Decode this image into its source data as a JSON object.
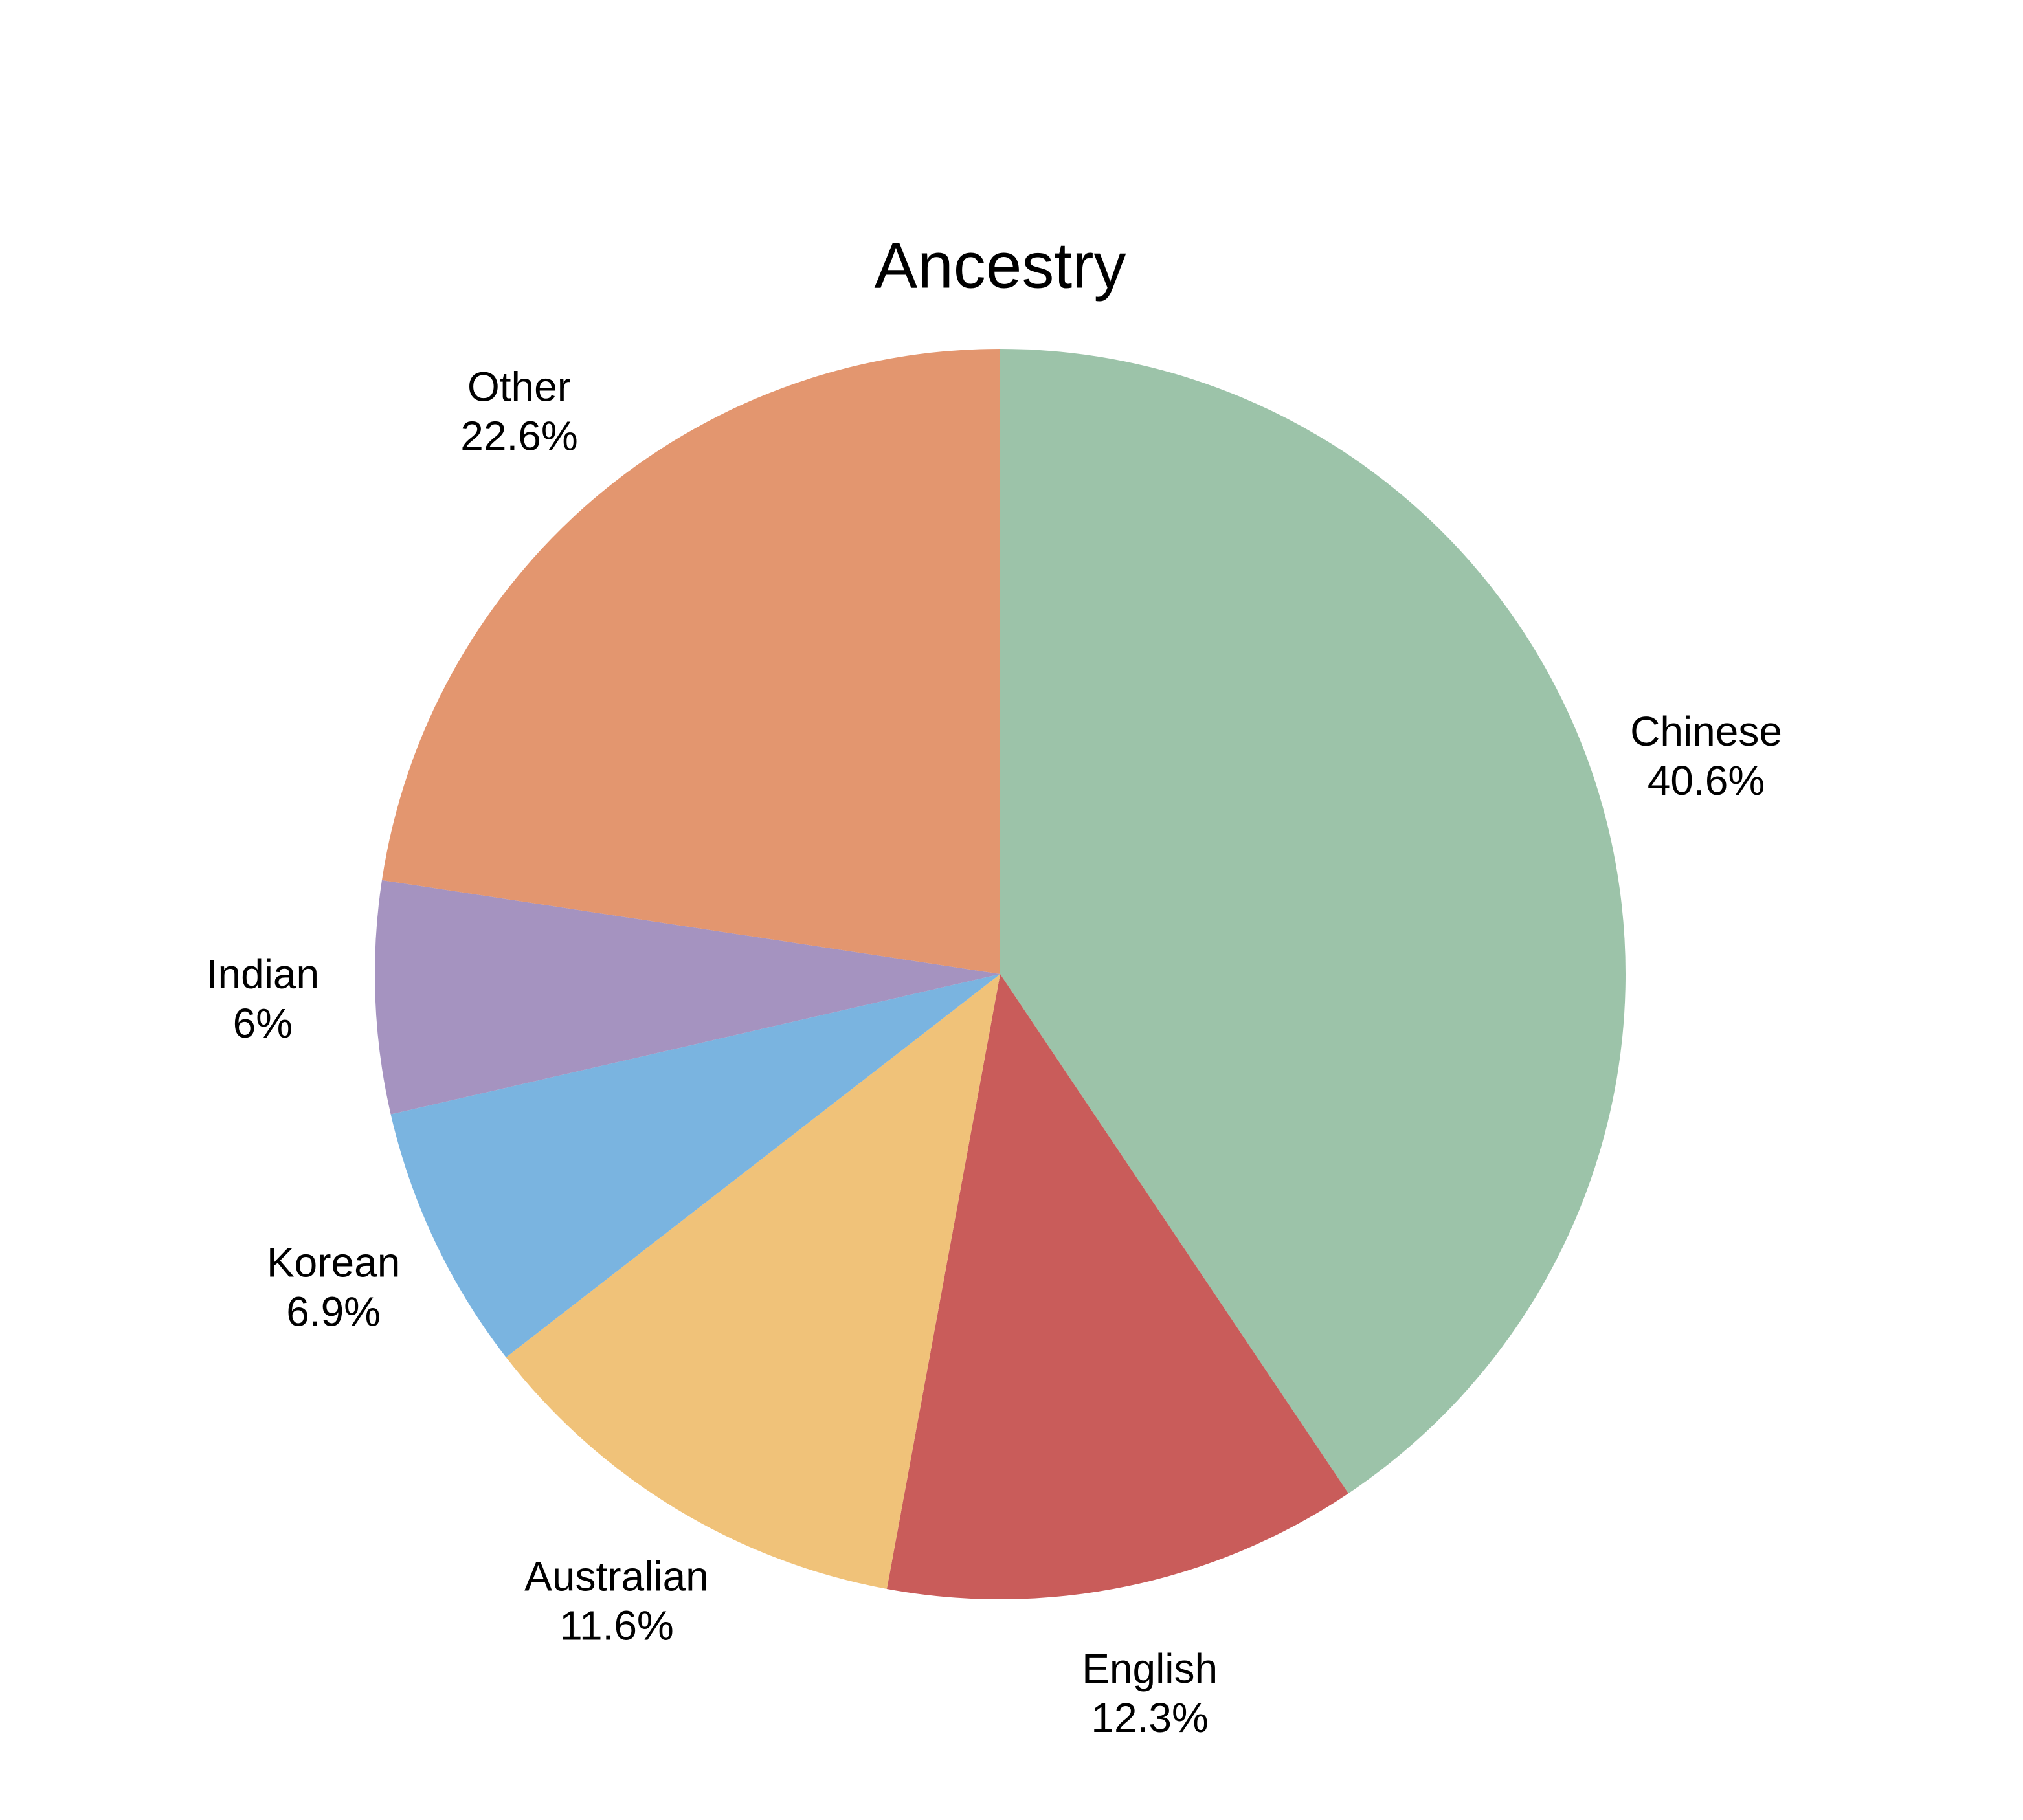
{
  "chart_data": {
    "type": "pie",
    "title": "Ancestry",
    "categories": [
      "Chinese",
      "English",
      "Australian",
      "Korean",
      "Indian",
      "Other"
    ],
    "values": [
      40.6,
      12.3,
      11.6,
      6.9,
      6,
      22.6
    ],
    "value_labels": [
      "40.6%",
      "12.3%",
      "11.6%",
      "6.9%",
      "6%",
      "22.6%"
    ],
    "colors": [
      "#9cc3a9",
      "#c95c5a",
      "#f0c279",
      "#7ab4e0",
      "#a593c0",
      "#e3966f"
    ]
  }
}
